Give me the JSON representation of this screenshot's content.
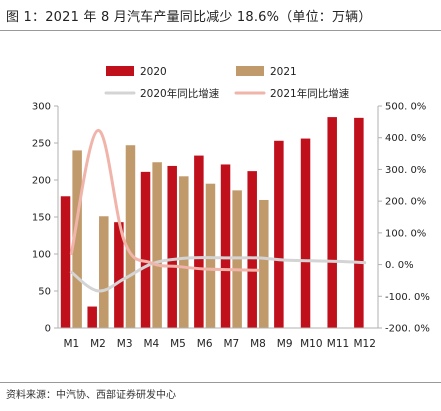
{
  "header": {
    "title": "图 1：2021 年 8 月汽车产量同比减少 18.6%（单位：万辆）"
  },
  "footer": {
    "source": "资料来源：中汽协、西部证券研发中心"
  },
  "colors": {
    "bar_2020": "#c0101c",
    "bar_2021": "#c19a6b",
    "line_2020": "#d4d4d4",
    "line_2021": "#f0b4aa",
    "axis": "#b0b0b0"
  },
  "chart_data": {
    "type": "bar",
    "title": "",
    "xlabel": "",
    "ylabel": "",
    "categories": [
      "M1",
      "M2",
      "M3",
      "M4",
      "M5",
      "M6",
      "M7",
      "M8",
      "M9",
      "M10",
      "M11",
      "M12"
    ],
    "ylim": [
      0,
      300
    ],
    "y_ticks": [
      "0",
      "50",
      "100",
      "150",
      "200",
      "250",
      "300"
    ],
    "y2lim": [
      -200,
      500
    ],
    "y2_ticks": [
      "-200. 0%",
      "-100. 0%",
      "0. 0%",
      "100. 0%",
      "200. 0%",
      "300. 0%",
      "400. 0%",
      "500. 0%"
    ],
    "grid": false,
    "legend_position": "top",
    "series": [
      {
        "name": "2020",
        "kind": "bar",
        "axis": "left",
        "values": [
          178,
          29,
          143,
          211,
          219,
          233,
          221,
          212,
          253,
          256,
          285,
          284
        ]
      },
      {
        "name": "2021",
        "kind": "bar",
        "axis": "left",
        "values": [
          240,
          151,
          247,
          224,
          205,
          195,
          186,
          173,
          null,
          null,
          null,
          null
        ]
      },
      {
        "name": "2020年同比增速",
        "kind": "line",
        "axis": "right",
        "values": [
          -24,
          -83,
          -44,
          2,
          18,
          22,
          21,
          21,
          14,
          12,
          10,
          6
        ]
      },
      {
        "name": "2021年同比增速",
        "kind": "line",
        "axis": "right",
        "values": [
          35,
          423,
          71,
          5,
          -6,
          -14,
          -16,
          -18,
          null,
          null,
          null,
          null
        ]
      }
    ]
  }
}
